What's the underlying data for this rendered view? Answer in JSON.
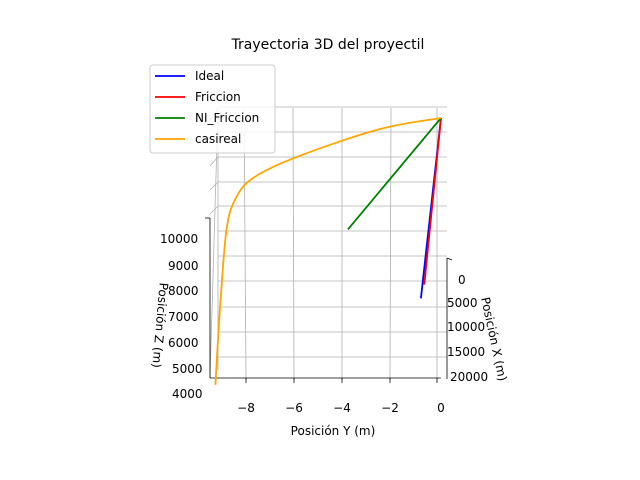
{
  "chart_data": {
    "type": "line",
    "projection": "3d",
    "title": "Trayectoria 3D del proyectil",
    "xlabel": "Posición X (m)",
    "ylabel": "Posición Y (m)",
    "zlabel": "Posición Z (m)",
    "x_ticks": [
      "0",
      "5000",
      "10000",
      "15000",
      "20000"
    ],
    "y_ticks": [
      "−8",
      "−6",
      "−4",
      "−2",
      "0"
    ],
    "z_ticks": [
      "4000",
      "5000",
      "6000",
      "7000",
      "8000",
      "9000",
      "10000"
    ],
    "grid": true,
    "legend_position": "top-left",
    "series": [
      {
        "name": "Ideal",
        "color": "#0000ff",
        "points": [
          [
            0,
            0,
            10800
          ],
          [
            20000,
            -0.45,
            9300
          ]
        ]
      },
      {
        "name": "Friccion",
        "color": "#ff0000",
        "points": [
          [
            0,
            0,
            10800
          ],
          [
            18000,
            -0.35,
            9300
          ]
        ]
      },
      {
        "name": "NI_Friccion",
        "color": "#008000",
        "points": [
          [
            0,
            0,
            10800
          ],
          [
            10000,
            -3.6,
            9300
          ]
        ]
      },
      {
        "name": "casireal",
        "color": "#ffa500",
        "points": [
          [
            0,
            0,
            10800
          ],
          [
            400,
            -2.5,
            10500
          ],
          [
            1500,
            -5.8,
            9800
          ],
          [
            3000,
            -7.6,
            9400
          ],
          [
            5000,
            -8.3,
            9100
          ],
          [
            7000,
            -8.6,
            8500
          ],
          [
            9500,
            -8.8,
            6500
          ],
          [
            12000,
            -8.95,
            4300
          ]
        ]
      }
    ]
  }
}
